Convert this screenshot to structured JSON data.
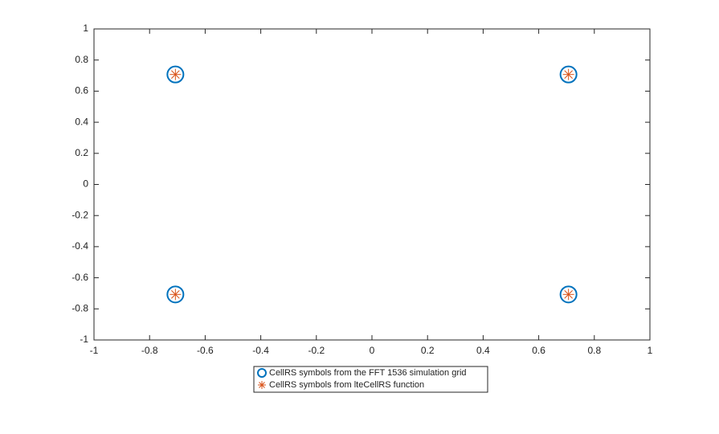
{
  "chart_data": {
    "type": "scatter",
    "series": [
      {
        "name": "CellRS symbols from the FFT 1536 simulation grid",
        "color": "#0072BD",
        "marker": "circle",
        "x": [
          -0.7071,
          0.7071,
          -0.7071,
          0.7071
        ],
        "values": [
          0.7071,
          0.7071,
          -0.7071,
          -0.7071
        ]
      },
      {
        "name": "CellRS symbols from lteCellRS function",
        "color": "#D95319",
        "marker": "asterisk",
        "x": [
          -0.7071,
          0.7071,
          -0.7071,
          0.7071
        ],
        "values": [
          0.7071,
          0.7071,
          -0.7071,
          -0.7071
        ]
      }
    ],
    "xlim": [
      -1,
      1
    ],
    "ylim": [
      -1,
      1
    ],
    "xticks": [
      -1,
      -0.8,
      -0.6,
      -0.4,
      -0.2,
      0,
      0.2,
      0.4,
      0.6,
      0.8,
      1
    ],
    "yticks": [
      -1,
      -0.8,
      -0.6,
      -0.4,
      -0.2,
      0,
      0.2,
      0.4,
      0.6,
      0.8,
      1
    ],
    "grid": false,
    "legend": "bottom"
  }
}
